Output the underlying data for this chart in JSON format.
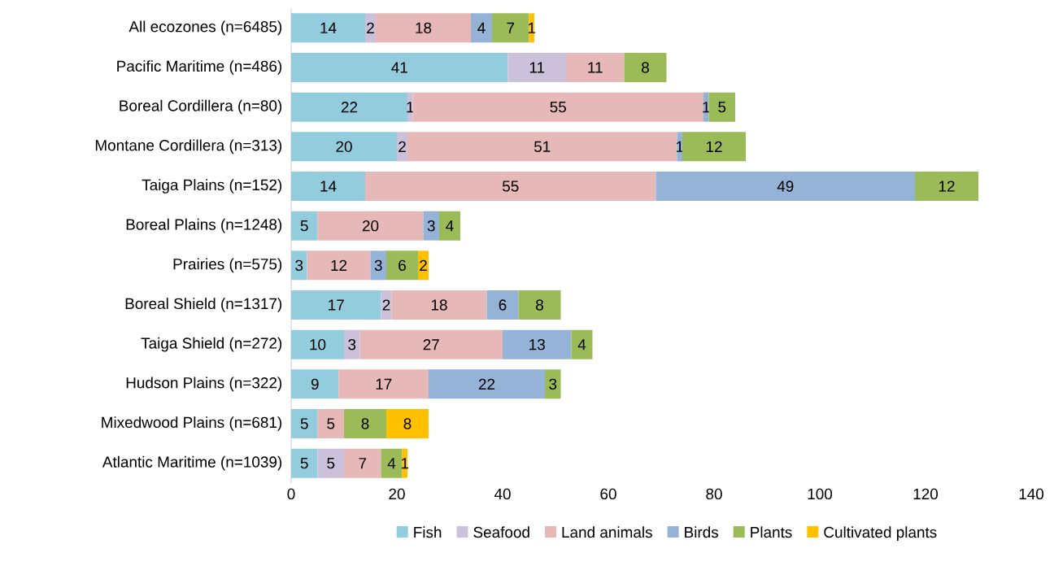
{
  "chart_data": {
    "type": "bar",
    "orientation": "horizontal",
    "stacked": true,
    "data_labels": true,
    "legend": "bottom",
    "categories": [
      "All ecozones (n=6485)",
      "Pacific Maritime (n=486)",
      "Boreal Cordillera (n=80)",
      "Montane Cordillera (n=313)",
      "Taiga Plains (n=152)",
      "Boreal Plains (n=1248)",
      "Prairies (n=575)",
      "Boreal Shield (n=1317)",
      "Taiga Shield (n=272)",
      "Hudson Plains (n=322)",
      "Mixedwood Plains (n=681)",
      "Atlantic Maritime (n=1039)"
    ],
    "xlim": [
      0,
      140
    ],
    "xticks": [
      0,
      20,
      40,
      60,
      80,
      100,
      120,
      140
    ],
    "series": [
      {
        "name": "Fish",
        "color": "#93cddd",
        "values": [
          14,
          41,
          22,
          20,
          14,
          5,
          3,
          17,
          10,
          9,
          5,
          5
        ]
      },
      {
        "name": "Seafood",
        "color": "#ccc1da",
        "values": [
          2,
          11,
          1,
          2,
          null,
          null,
          null,
          2,
          3,
          null,
          null,
          5
        ]
      },
      {
        "name": "Land animals",
        "color": "#e6b9b8",
        "values": [
          18,
          11,
          55,
          51,
          55,
          20,
          12,
          18,
          27,
          17,
          5,
          7
        ]
      },
      {
        "name": "Birds",
        "color": "#95b3d7",
        "values": [
          4,
          null,
          1,
          1,
          49,
          3,
          3,
          6,
          13,
          22,
          null,
          null
        ]
      },
      {
        "name": "Plants",
        "color": "#9bbb59",
        "values": [
          7,
          8,
          5,
          12,
          12,
          4,
          6,
          8,
          4,
          3,
          8,
          4
        ]
      },
      {
        "name": "Cultivated plants",
        "color": "#ffc000",
        "values": [
          1,
          null,
          null,
          null,
          null,
          null,
          2,
          null,
          null,
          null,
          8,
          1
        ]
      }
    ]
  }
}
